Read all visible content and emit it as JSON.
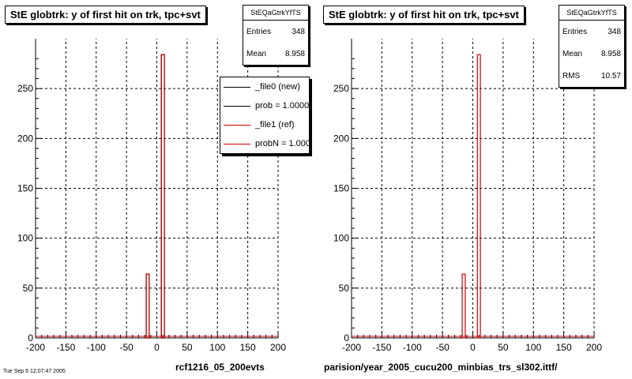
{
  "colors": {
    "new": "#000000",
    "ref": "#cc0000",
    "grid": "#000000"
  },
  "chart_data": [
    {
      "type": "bar",
      "title": "StE globtrk: y of first hit on trk, tpc+svt",
      "xlabel": "rcf1216_05_200evts",
      "ylabel": "",
      "xlim": [
        -200,
        200
      ],
      "ylim": [
        0,
        300
      ],
      "xticks": [
        "-200",
        "-150",
        "-100",
        "-50",
        "0",
        "50",
        "100",
        "150",
        "200"
      ],
      "yticks": [
        "0",
        "50",
        "100",
        "150",
        "200",
        "250"
      ],
      "grid": true,
      "bin_width": 5,
      "series": [
        {
          "name": "_file0 (new)",
          "bins": [
            {
              "x": -15,
              "y": 64
            },
            {
              "x": 10,
              "y": 284
            }
          ]
        },
        {
          "name": "_file1 (ref)",
          "bins": [
            {
              "x": -15,
              "y": 64
            },
            {
              "x": 10,
              "y": 284
            }
          ]
        }
      ],
      "stats": {
        "name": "StEQaGtrkYfTS",
        "rows": [
          {
            "label": "Entries",
            "value": "348"
          },
          {
            "label": "Mean",
            "value": "8.958"
          }
        ]
      },
      "legend": [
        {
          "text": "_file0 (new)",
          "color": "#000000"
        },
        {
          "text": "prob = 1.000000",
          "color": "#000000"
        },
        {
          "text": "_file1 (ref)",
          "color": "#cc0000"
        },
        {
          "text": "probN = 1.000000",
          "color": "#cc0000"
        }
      ]
    },
    {
      "type": "bar",
      "title": "StE globtrk: y of first hit on trk, tpc+svt",
      "xlabel": "parision/year_2005_cucu200_minbias_trs_sl302.ittf/",
      "ylabel": "",
      "xlim": [
        -200,
        200
      ],
      "ylim": [
        0,
        300
      ],
      "xticks": [
        "-200",
        "-150",
        "-100",
        "-50",
        "0",
        "50",
        "100",
        "150",
        "200"
      ],
      "yticks": [
        "0",
        "50",
        "100",
        "150",
        "200",
        "250"
      ],
      "grid": true,
      "bin_width": 5,
      "series": [
        {
          "name": "",
          "bins": [
            {
              "x": -15,
              "y": 64
            },
            {
              "x": 10,
              "y": 284
            }
          ]
        }
      ],
      "stats": {
        "name": "StEQaGtrkYfTS",
        "rows": [
          {
            "label": "Entries",
            "value": "348"
          },
          {
            "label": "Mean",
            "value": "8.958"
          },
          {
            "label": "RMS",
            "value": "10.57"
          }
        ]
      }
    }
  ],
  "footer": {
    "stamp": "Tue Sep  6 12:07:47 2005"
  }
}
